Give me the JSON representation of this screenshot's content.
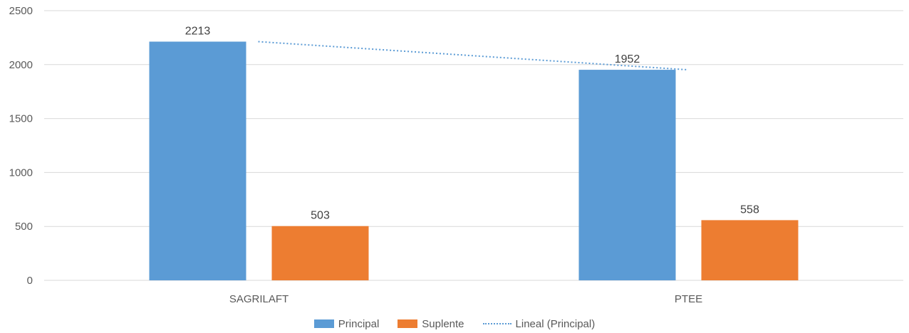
{
  "chart_data": {
    "type": "bar",
    "categories": [
      "SAGRILAFT",
      "PTEE"
    ],
    "series": [
      {
        "name": "Principal",
        "values": [
          2213,
          1952
        ],
        "color": "#5b9bd5"
      },
      {
        "name": "Suplente",
        "values": [
          503,
          558
        ],
        "color": "#ed7d31"
      }
    ],
    "trendline": {
      "name": "Lineal (Principal)",
      "series": "Principal",
      "style": "dotted",
      "color": "#5b9bd5"
    },
    "ylim": [
      0,
      2500
    ],
    "yticks": [
      0,
      500,
      1000,
      1500,
      2000,
      2500
    ],
    "grid": true,
    "data_labels": true,
    "legend_position": "bottom",
    "title": "",
    "xlabel": "",
    "ylabel": ""
  }
}
